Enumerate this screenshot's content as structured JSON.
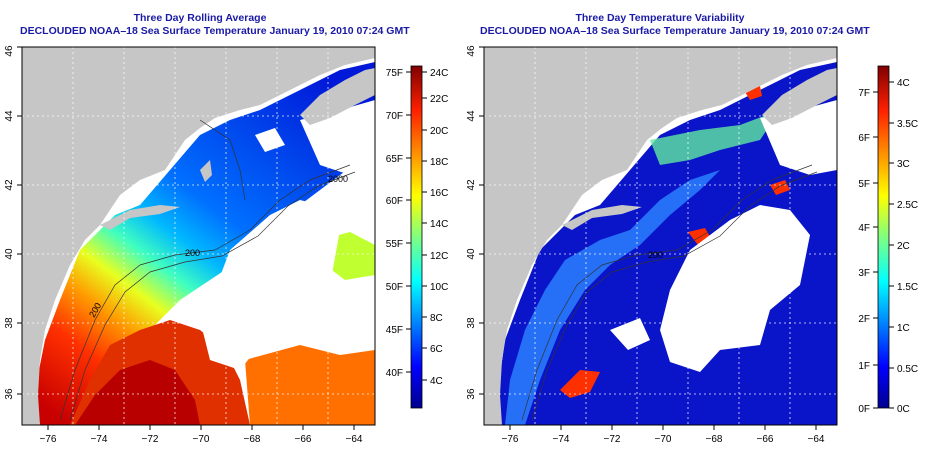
{
  "panels": [
    {
      "title": "Three Day Rolling Average",
      "subtitle": "DECLOUDED NOAA–18 Sea Surface Temperature January 19, 2010 07:24 GMT",
      "x_ticks": [
        "−76",
        "−74",
        "−72",
        "−70",
        "−68",
        "−66",
        "−64"
      ],
      "y_ticks": [
        "36",
        "38",
        "40",
        "42",
        "44",
        "46"
      ],
      "contour_labels": [
        "200",
        "200",
        "2000"
      ],
      "colorbar": {
        "f_labels": [
          "40F",
          "45F",
          "50F",
          "55F",
          "60F",
          "65F",
          "70F",
          "75F"
        ],
        "c_labels": [
          "4C",
          "6C",
          "8C",
          "10C",
          "12C",
          "14C",
          "16C",
          "18C",
          "20C",
          "22C",
          "24C"
        ]
      }
    },
    {
      "title": "Three Day Temperature Variability",
      "subtitle": "DECLOUDED NOAA–18 Sea Surface Temperature January 19, 2010 07:24 GMT",
      "x_ticks": [
        "−76",
        "−74",
        "−72",
        "−70",
        "−68",
        "−66",
        "−64"
      ],
      "y_ticks": [
        "36",
        "38",
        "40",
        "42",
        "44",
        "46"
      ],
      "contour_labels": [
        "200"
      ],
      "colorbar": {
        "f_labels": [
          "0F",
          "1F",
          "2F",
          "3F",
          "4F",
          "5F",
          "6F",
          "7F"
        ],
        "c_labels": [
          "0C",
          "0.5C",
          "1C",
          "1.5C",
          "2C",
          "2.5C",
          "3C",
          "3.5C",
          "4C"
        ]
      }
    }
  ],
  "colors": {
    "land": "#c6c6c6",
    "title": "#1a1aa6",
    "jet": [
      "#00008f",
      "#0000ff",
      "#0080ff",
      "#00ffff",
      "#80ff80",
      "#ffff00",
      "#ff8000",
      "#ff0000",
      "#800000"
    ]
  }
}
